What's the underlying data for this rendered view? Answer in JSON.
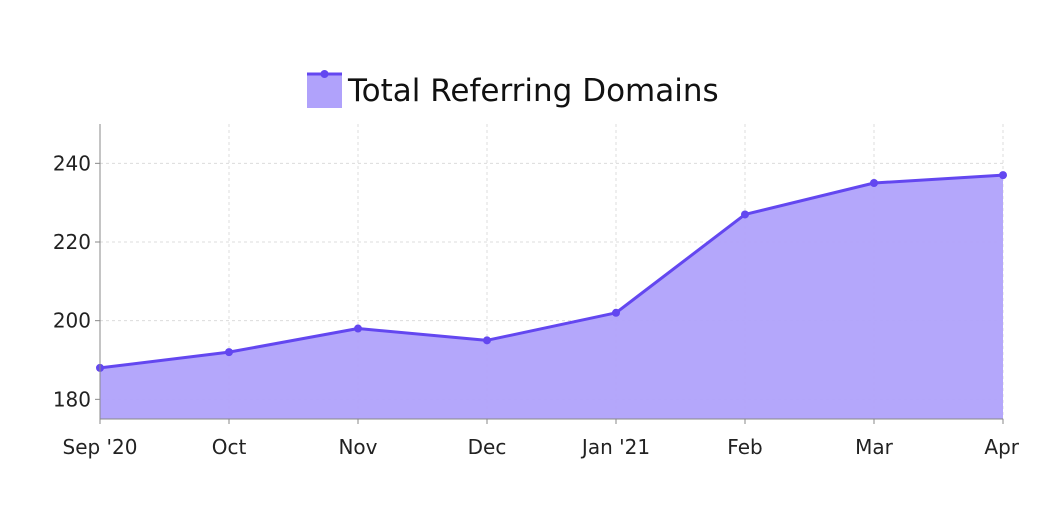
{
  "chart_data": {
    "type": "area",
    "title": "",
    "xlabel": "",
    "ylabel": "",
    "categories": [
      "Sep '20",
      "Oct",
      "Nov",
      "Dec",
      "Jan '21",
      "Feb",
      "Mar",
      "Apr"
    ],
    "series": [
      {
        "name": "Total Referring Domains",
        "values": [
          188,
          192,
          198,
          195,
          202,
          227,
          235,
          237
        ]
      }
    ],
    "ylim": [
      175,
      250
    ],
    "yticks": [
      180,
      200,
      220,
      240
    ],
    "grid": true,
    "legend_position": "top-center",
    "colors": {
      "line": "#6347f0",
      "fill": "#b0a2fb",
      "grid": "#dcdcdc",
      "axis": "#888888"
    }
  }
}
